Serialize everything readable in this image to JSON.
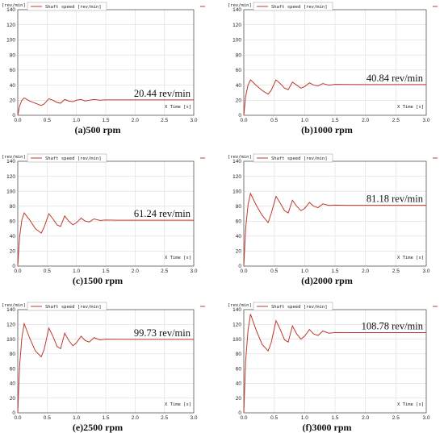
{
  "chart_data": [
    {
      "type": "line",
      "caption": "(a)500 rpm",
      "ylabel": "[rev/min]",
      "xlabel": "X  Time [s]",
      "legend": "Shaft speed [rev/min]",
      "annotation": "20.44 rev/min",
      "xlim": [
        0,
        3.0
      ],
      "ylim": [
        0,
        140
      ],
      "xticks": [
        "0.0",
        "0.5",
        "1.0",
        "1.5",
        "2.0",
        "2.5",
        "3.0"
      ],
      "yticks": [
        "0",
        "20",
        "40",
        "60",
        "80",
        "100",
        "120",
        "140"
      ],
      "series": [
        {
          "steady": 20.44,
          "x": [
            0,
            0.03,
            0.07,
            0.11,
            0.2,
            0.3,
            0.4,
            0.45,
            0.53,
            0.6,
            0.67,
            0.73,
            0.8,
            0.87,
            0.94,
            1.0,
            1.08,
            1.15,
            1.22,
            1.3,
            1.4,
            1.5,
            1.7,
            2.0,
            2.5,
            3.0
          ],
          "y": [
            0,
            12,
            20,
            23,
            19,
            16,
            13,
            15,
            22,
            20,
            17,
            16,
            21,
            19,
            18,
            20,
            21,
            19,
            20,
            21,
            20,
            20.5,
            20.4,
            20.4,
            20.4,
            20.4
          ]
        }
      ]
    },
    {
      "type": "line",
      "caption": "(b)1000 rpm",
      "ylabel": "[rev/min]",
      "xlabel": "X  Time [s]",
      "legend": "Shaft speed [rev/min]",
      "annotation": "40.84 rev/min",
      "xlim": [
        0,
        3.0
      ],
      "ylim": [
        0,
        140
      ],
      "xticks": [
        "0.0",
        "0.5",
        "1.0",
        "1.5",
        "2.0",
        "2.5",
        "3.0"
      ],
      "yticks": [
        "0",
        "20",
        "40",
        "60",
        "80",
        "100",
        "120",
        "140"
      ],
      "series": [
        {
          "steady": 40.84,
          "x": [
            0,
            0.03,
            0.07,
            0.11,
            0.2,
            0.3,
            0.4,
            0.45,
            0.53,
            0.6,
            0.67,
            0.73,
            0.8,
            0.87,
            0.94,
            1.0,
            1.08,
            1.15,
            1.22,
            1.3,
            1.4,
            1.5,
            1.7,
            2.0,
            2.5,
            3.0
          ],
          "y": [
            0,
            25,
            40,
            47,
            40,
            33,
            28,
            33,
            47,
            42,
            36,
            34,
            44,
            40,
            36,
            38,
            43,
            40,
            39,
            42,
            40,
            41,
            40.9,
            40.8,
            40.8,
            40.8
          ]
        }
      ]
    },
    {
      "type": "line",
      "caption": "(c)1500 rpm",
      "ylabel": "[rev/min]",
      "xlabel": "X  Time [s]",
      "legend": "Shaft speed [rev/min]",
      "annotation": "61.24 rev/min",
      "xlim": [
        0,
        3.0
      ],
      "ylim": [
        0,
        140
      ],
      "xticks": [
        "0.0",
        "0.5",
        "1.0",
        "1.5",
        "2.0",
        "2.5",
        "3.0"
      ],
      "yticks": [
        "0",
        "20",
        "40",
        "60",
        "80",
        "100",
        "120",
        "140"
      ],
      "series": [
        {
          "steady": 61.24,
          "x": [
            0,
            0.03,
            0.07,
            0.11,
            0.2,
            0.3,
            0.4,
            0.45,
            0.53,
            0.6,
            0.67,
            0.73,
            0.8,
            0.87,
            0.94,
            1.0,
            1.08,
            1.15,
            1.22,
            1.3,
            1.4,
            1.5,
            1.7,
            2.0,
            2.5,
            3.0
          ],
          "y": [
            0,
            38,
            62,
            71,
            62,
            50,
            44,
            52,
            70,
            63,
            55,
            53,
            67,
            60,
            55,
            58,
            64,
            60,
            59,
            63,
            61,
            61.5,
            61.3,
            61.2,
            61.2,
            61.2
          ]
        }
      ]
    },
    {
      "type": "line",
      "caption": "(d)2000 rpm",
      "ylabel": "[rev/min]",
      "xlabel": "X  Time [s]",
      "legend": "Shaft speed [rev/min]",
      "annotation": "81.18 rev/min",
      "xlim": [
        0,
        3.0
      ],
      "ylim": [
        0,
        140
      ],
      "xticks": [
        "0.0",
        "0.5",
        "1.0",
        "1.5",
        "2.0",
        "2.5",
        "3.0"
      ],
      "yticks": [
        "0",
        "20",
        "40",
        "60",
        "80",
        "100",
        "120",
        "140"
      ],
      "series": [
        {
          "steady": 81.18,
          "x": [
            0,
            0.03,
            0.07,
            0.11,
            0.2,
            0.3,
            0.4,
            0.45,
            0.53,
            0.6,
            0.67,
            0.73,
            0.8,
            0.87,
            0.94,
            1.0,
            1.08,
            1.15,
            1.22,
            1.3,
            1.4,
            1.5,
            1.7,
            2.0,
            2.5,
            3.0
          ],
          "y": [
            0,
            50,
            82,
            97,
            82,
            68,
            58,
            70,
            93,
            84,
            74,
            71,
            88,
            80,
            74,
            77,
            85,
            80,
            78,
            83,
            81,
            81.5,
            81.2,
            81.2,
            81.2,
            81.2
          ]
        }
      ]
    },
    {
      "type": "line",
      "caption": "(e)2500 rpm",
      "ylabel": "[rev/min]",
      "xlabel": "X  Time [s]",
      "legend": "Shaft speed [rev/min]",
      "annotation": "99.73 rev/min",
      "xlim": [
        0,
        3.0
      ],
      "ylim": [
        0,
        140
      ],
      "xticks": [
        "0.0",
        "0.5",
        "1.0",
        "1.5",
        "2.0",
        "2.5",
        "3.0"
      ],
      "yticks": [
        "0",
        "20",
        "40",
        "60",
        "80",
        "100",
        "120",
        "140"
      ],
      "series": [
        {
          "steady": 99.73,
          "x": [
            0,
            0.03,
            0.07,
            0.11,
            0.2,
            0.3,
            0.4,
            0.45,
            0.53,
            0.6,
            0.67,
            0.73,
            0.8,
            0.87,
            0.94,
            1.0,
            1.08,
            1.15,
            1.22,
            1.3,
            1.4,
            1.5,
            1.7,
            2.0,
            2.5,
            3.0
          ],
          "y": [
            0,
            62,
            102,
            121,
            102,
            84,
            76,
            86,
            115,
            104,
            90,
            87,
            108,
            98,
            91,
            95,
            104,
            98,
            96,
            102,
            99,
            100,
            99.8,
            99.7,
            99.7,
            99.7
          ]
        }
      ]
    },
    {
      "type": "line",
      "caption": "(f)3000 rpm",
      "ylabel": "[rev/min]",
      "xlabel": "X  Time [s]",
      "legend": "Shaft speed [rev/min]",
      "annotation": "108.78 rev/min",
      "xlim": [
        0,
        3.0
      ],
      "ylim": [
        0,
        140
      ],
      "xticks": [
        "0.0",
        "0.5",
        "1.0",
        "1.5",
        "2.0",
        "2.5",
        "3.0"
      ],
      "yticks": [
        "0",
        "20",
        "40",
        "60",
        "80",
        "100",
        "120",
        "140"
      ],
      "series": [
        {
          "steady": 108.78,
          "x": [
            0,
            0.03,
            0.07,
            0.11,
            0.2,
            0.3,
            0.4,
            0.45,
            0.53,
            0.6,
            0.67,
            0.73,
            0.8,
            0.87,
            0.94,
            1.0,
            1.08,
            1.15,
            1.22,
            1.3,
            1.4,
            1.5,
            1.7,
            2.0,
            2.5,
            3.0
          ],
          "y": [
            0,
            70,
            112,
            134,
            113,
            93,
            84,
            95,
            125,
            113,
            99,
            96,
            118,
            107,
            100,
            104,
            113,
            107,
            105,
            111,
            108,
            109,
            108.8,
            108.8,
            108.8,
            108.8
          ]
        }
      ]
    }
  ],
  "colors": {
    "series": "#c0392b",
    "grid": "#dedede",
    "axis": "#444444"
  }
}
